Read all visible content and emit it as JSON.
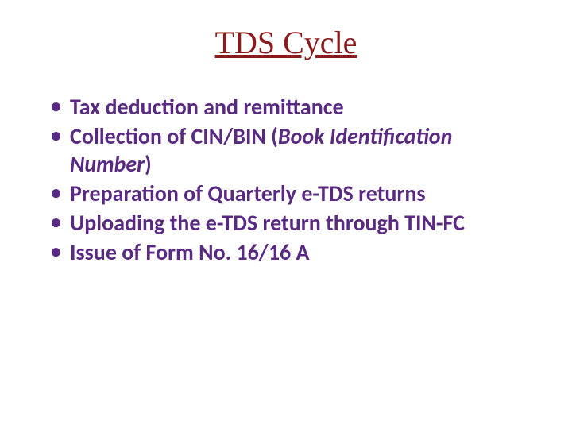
{
  "title": "TDS Cycle",
  "colors": {
    "title_color": "#8b1a1a",
    "text_color": "#5a2a82",
    "background": "#ffffff",
    "bullet_color": "#5a2a82"
  },
  "typography": {
    "title_font": "Times New Roman",
    "title_fontsize": 40,
    "body_font": "Calibri",
    "body_fontsize": 28,
    "body_fontweight": 700
  },
  "bullets": [
    {
      "pre": "Tax deduction and remittance",
      "italic": "",
      "post": ""
    },
    {
      "pre": "Collection of CIN/BIN (",
      "italic": "Book Identification Number",
      "post": ")"
    },
    {
      "pre": "Preparation of Quarterly e-TDS returns",
      "italic": "",
      "post": ""
    },
    {
      "pre": "Uploading the e-TDS return through TIN-FC",
      "italic": "",
      "post": ""
    },
    {
      "pre": "Issue of Form No. 16/16 A",
      "italic": "",
      "post": ""
    }
  ]
}
